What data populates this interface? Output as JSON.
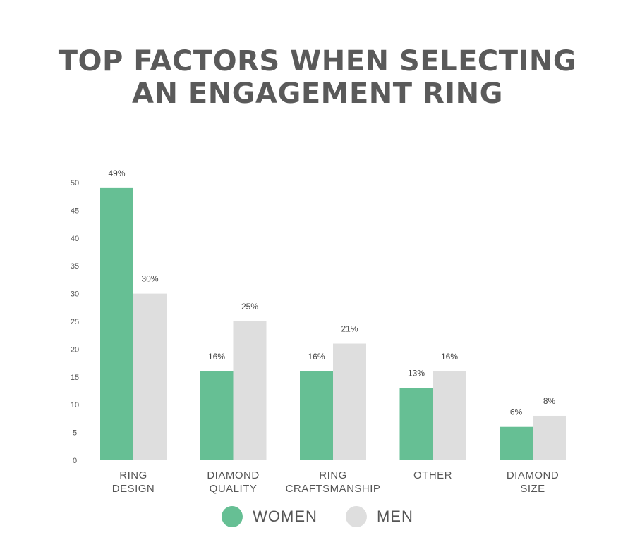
{
  "chart_data": {
    "type": "bar",
    "title": "TOP FACTORS WHEN SELECTING AN ENGAGEMENT RING",
    "title_lines": [
      "TOP FACTORS WHEN SELECTING",
      "AN ENGAGEMENT RING"
    ],
    "categories": [
      [
        "RING",
        "DESIGN"
      ],
      [
        "DIAMOND",
        "QUALITY"
      ],
      [
        "RING",
        "CRAFTSMANSHIP"
      ],
      [
        "OTHER"
      ],
      [
        "DIAMOND",
        "SIZE"
      ]
    ],
    "series": [
      {
        "name": "WOMEN",
        "color": "#66bf94",
        "values": [
          49,
          16,
          16,
          13,
          6
        ],
        "labels": [
          "49%",
          "16%",
          "16%",
          "13%",
          "6%"
        ]
      },
      {
        "name": "MEN",
        "color": "#dedede",
        "values": [
          30,
          25,
          21,
          16,
          8
        ],
        "labels": [
          "30%",
          "25%",
          "21%",
          "16%",
          "8%"
        ]
      }
    ],
    "ylim": [
      0,
      50
    ],
    "yticks": [
      0,
      5,
      10,
      15,
      20,
      25,
      30,
      35,
      40,
      45,
      50
    ],
    "grid": false,
    "legend": "bottom-center"
  }
}
